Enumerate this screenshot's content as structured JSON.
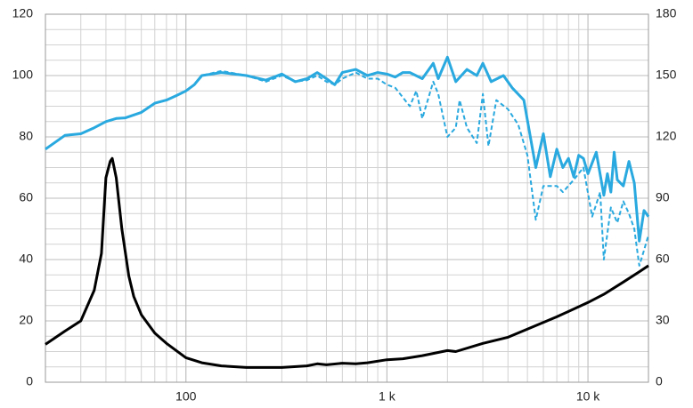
{
  "chart_data": {
    "type": "line",
    "xscale": "log",
    "grid": true,
    "xlim": [
      20,
      20000
    ],
    "xticks": [
      {
        "value": 100,
        "label": "100"
      },
      {
        "value": 1000,
        "label": "1 k"
      },
      {
        "value": 10000,
        "label": "10 k"
      }
    ],
    "ylim": [
      0,
      120
    ],
    "yticks": [
      0,
      20,
      40,
      60,
      80,
      100,
      120
    ],
    "y2lim": [
      0,
      180
    ],
    "y2ticks": [
      0,
      30,
      60,
      90,
      120,
      150,
      180
    ],
    "series": [
      {
        "color": "#29a9df",
        "style": "solid",
        "x": [
          20,
          25,
          30,
          35,
          40,
          45,
          50,
          60,
          70,
          80,
          90,
          100,
          110,
          120,
          150,
          200,
          250,
          300,
          350,
          400,
          450,
          500,
          550,
          600,
          700,
          800,
          900,
          1000,
          1100,
          1200,
          1300,
          1500,
          1700,
          1800,
          2000,
          2200,
          2500,
          2800,
          3000,
          3300,
          3800,
          4200,
          4800,
          5500,
          6000,
          6500,
          7000,
          7500,
          8000,
          8500,
          9000,
          9500,
          10000,
          11000,
          12000,
          12500,
          13000,
          13500,
          14000,
          15000,
          16000,
          17000,
          18000,
          19000,
          20000
        ],
        "values": [
          76,
          80.5,
          81,
          83,
          85,
          86,
          86.2,
          88,
          91,
          92,
          93.5,
          95,
          97,
          100,
          101,
          100,
          98.5,
          100.5,
          98,
          99,
          101,
          99,
          97,
          101,
          102,
          100,
          101,
          100.5,
          99.5,
          101,
          101,
          99,
          104,
          99,
          106,
          98,
          102,
          100,
          104,
          98,
          100,
          96,
          92,
          70,
          81,
          67,
          76,
          70,
          73,
          67,
          74,
          73,
          68,
          75,
          61,
          68,
          62,
          75,
          66,
          64,
          72,
          65,
          46,
          56,
          54
        ]
      },
      {
        "color": "#29a9df",
        "style": "dashed",
        "x": [
          20,
          25,
          30,
          35,
          40,
          45,
          50,
          60,
          70,
          80,
          90,
          100,
          110,
          120,
          150,
          200,
          250,
          300,
          350,
          400,
          450,
          500,
          550,
          600,
          700,
          800,
          900,
          1000,
          1100,
          1300,
          1400,
          1500,
          1700,
          1800,
          2000,
          2200,
          2300,
          2500,
          2800,
          3000,
          3200,
          3500,
          4000,
          4500,
          5000,
          5500,
          6000,
          7000,
          7500,
          8500,
          9500,
          10500,
          11500,
          12000,
          13000,
          14000,
          15000,
          16000,
          17000,
          18000,
          19000,
          20000
        ],
        "values": [
          76,
          80.5,
          81,
          83,
          85,
          86,
          86.2,
          88,
          91,
          92,
          93.5,
          95,
          97,
          100,
          101.5,
          100,
          98,
          100,
          98,
          98.5,
          100,
          98,
          97,
          99,
          101,
          99,
          99,
          97,
          96,
          90,
          95,
          86,
          98,
          94,
          80,
          83,
          92,
          83,
          78,
          94,
          77,
          92,
          89,
          84,
          74,
          53,
          64,
          64,
          62,
          66,
          70,
          54,
          62,
          40,
          57,
          52,
          59,
          55,
          50,
          38,
          43,
          48
        ]
      },
      {
        "color": "#000000",
        "style": "solid",
        "axis": "y2",
        "x": [
          20,
          25,
          30,
          35,
          38,
          40,
          42,
          43,
          45,
          48,
          52,
          55,
          60,
          70,
          80,
          100,
          120,
          150,
          200,
          300,
          400,
          450,
          500,
          600,
          700,
          800,
          1000,
          1200,
          1500,
          2000,
          2200,
          3000,
          4000,
          5000,
          7000,
          10000,
          12000,
          15000,
          18000,
          20000
        ],
        "values": [
          18.5,
          25,
          30,
          45,
          63,
          100,
          108,
          109.5,
          100,
          75,
          52,
          42,
          33,
          24,
          19,
          12,
          9.5,
          8,
          7.2,
          7.2,
          8,
          9,
          8.5,
          9.3,
          9,
          9.5,
          11,
          11.5,
          13,
          15.5,
          15,
          19,
          22,
          26,
          32,
          39,
          43,
          49,
          54,
          57
        ]
      }
    ]
  }
}
